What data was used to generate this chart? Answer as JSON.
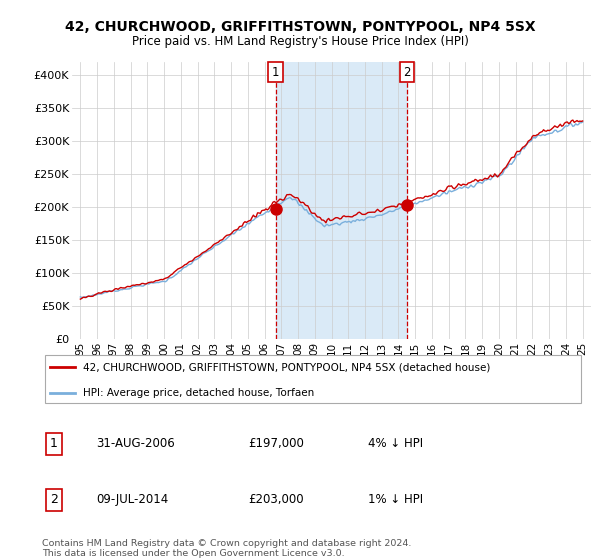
{
  "title": "42, CHURCHWOOD, GRIFFITHSTOWN, PONTYPOOL, NP4 5SX",
  "subtitle": "Price paid vs. HM Land Registry's House Price Index (HPI)",
  "legend_line1": "42, CHURCHWOOD, GRIFFITHSTOWN, PONTYPOOL, NP4 5SX (detached house)",
  "legend_line2": "HPI: Average price, detached house, Torfaen",
  "sale1_label": "1",
  "sale1_date": "31-AUG-2006",
  "sale1_price": "£197,000",
  "sale1_hpi": "4% ↓ HPI",
  "sale2_label": "2",
  "sale2_date": "09-JUL-2014",
  "sale2_price": "£203,000",
  "sale2_hpi": "1% ↓ HPI",
  "footer": "Contains HM Land Registry data © Crown copyright and database right 2024.\nThis data is licensed under the Open Government Licence v3.0.",
  "line_color_red": "#cc0000",
  "line_color_blue": "#7aafdc",
  "shade_color": "#daeaf7",
  "background_color": "#ffffff",
  "grid_color": "#cccccc",
  "sale1_x": 2006.67,
  "sale2_x": 2014.52,
  "sale1_y": 197000,
  "sale2_y": 203000,
  "ylim": [
    0,
    420000
  ],
  "xlim": [
    1994.5,
    2025.5
  ],
  "yticks": [
    0,
    50000,
    100000,
    150000,
    200000,
    250000,
    300000,
    350000,
    400000
  ],
  "ytick_labels": [
    "£0",
    "£50K",
    "£100K",
    "£150K",
    "£200K",
    "£250K",
    "£300K",
    "£350K",
    "£400K"
  ],
  "xtick_labels": [
    "95",
    "96",
    "97",
    "98",
    "99",
    "00",
    "01",
    "02",
    "03",
    "04",
    "05",
    "06",
    "07",
    "08",
    "09",
    "10",
    "11",
    "12",
    "13",
    "14",
    "15",
    "16",
    "17",
    "18",
    "19",
    "20",
    "21",
    "22",
    "23",
    "24",
    "25"
  ],
  "xticks": [
    1995,
    1996,
    1997,
    1998,
    1999,
    2000,
    2001,
    2002,
    2003,
    2004,
    2005,
    2006,
    2007,
    2008,
    2009,
    2010,
    2011,
    2012,
    2013,
    2014,
    2015,
    2016,
    2017,
    2018,
    2019,
    2020,
    2021,
    2022,
    2023,
    2024,
    2025
  ]
}
